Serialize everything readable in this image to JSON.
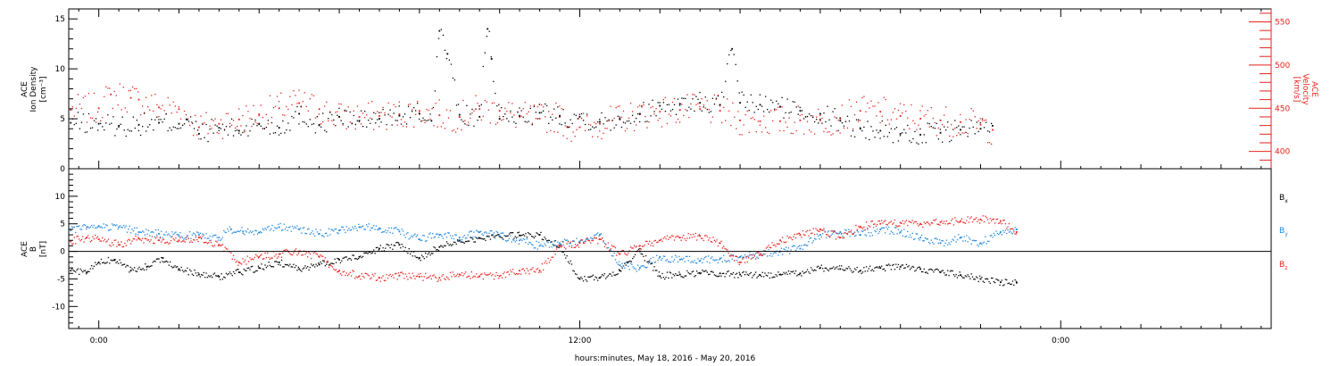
{
  "colors": {
    "black": "#000000",
    "red": "#e8221c",
    "blue": "#1e86e0",
    "axis_right": "#e8221c"
  },
  "xlabel": "hours:minutes, May 18, 2016 - May 20, 2016",
  "x_ticks": [
    {
      "hour": 0,
      "label": "0:00"
    },
    {
      "hour": 12,
      "label": "12:00"
    },
    {
      "hour": 24,
      "label": "0:00"
    }
  ],
  "panels": [
    {
      "id": "density-velocity",
      "left_label": [
        "ACE",
        "Ion Density",
        "[cm⁻³]"
      ],
      "right_label": [
        "ACE",
        "Velocity",
        "[km/s]"
      ],
      "left_ticks": [
        "0",
        "5",
        "10",
        "15"
      ],
      "right_ticks": [
        "400",
        "450",
        "500",
        "550"
      ]
    },
    {
      "id": "magnetic-field",
      "left_label": [
        "ACE",
        "B",
        "[nT]"
      ],
      "left_ticks": [
        "-10",
        "-5",
        "0",
        "5",
        "10"
      ],
      "legend": [
        {
          "base": "B",
          "sub": "x",
          "color": "#000000"
        },
        {
          "base": "B",
          "sub": "y",
          "color": "#1e86e0"
        },
        {
          "base": "B",
          "sub": "z",
          "color": "#e8221c"
        }
      ]
    }
  ],
  "chart_data": [
    {
      "type": "scatter",
      "title": "",
      "xlabel": "hours:minutes, May 18, 2016 - May 20, 2016",
      "xlim_hours": [
        -0.75,
        29.25
      ],
      "ylabel": "ACE Ion Density [cm⁻³]",
      "ylim": [
        0,
        16
      ],
      "y2label": "ACE Velocity [km/s]",
      "y2lim": [
        380,
        565
      ],
      "series": [
        {
          "name": "Ion Density",
          "axis": "left",
          "color": "#000000",
          "points": [
            [
              -0.7,
              4.6
            ],
            [
              0,
              4.5
            ],
            [
              0.5,
              4.3
            ],
            [
              1,
              4.4
            ],
            [
              1.5,
              4.6
            ],
            [
              2,
              4.5
            ],
            [
              2.2,
              4.9
            ],
            [
              2.5,
              3.5
            ],
            [
              3,
              4.1
            ],
            [
              3.5,
              3.8
            ],
            [
              4,
              4.5
            ],
            [
              4.5,
              4.1
            ],
            [
              5,
              5.5
            ],
            [
              5.5,
              4.4
            ],
            [
              6,
              5.2
            ],
            [
              6.5,
              4.8
            ],
            [
              7,
              5.0
            ],
            [
              7.5,
              5.3
            ],
            [
              8,
              5.5
            ],
            [
              8.3,
              4.8
            ],
            [
              8.5,
              13.8
            ],
            [
              8.7,
              11.5
            ],
            [
              9,
              5.4
            ],
            [
              9.5,
              5.2
            ],
            [
              9.7,
              14.0
            ],
            [
              9.8,
              11.0
            ],
            [
              10,
              5.0
            ],
            [
              10.5,
              5.3
            ],
            [
              11,
              5.6
            ],
            [
              11.5,
              5.3
            ],
            [
              12,
              5.2
            ],
            [
              12.5,
              4.7
            ],
            [
              13,
              5.0
            ],
            [
              13.5,
              5.5
            ],
            [
              14,
              6.3
            ],
            [
              14.5,
              6.5
            ],
            [
              15,
              6.6
            ],
            [
              15.5,
              6.4
            ],
            [
              15.8,
              12.0
            ],
            [
              16,
              6.6
            ],
            [
              16.5,
              6.4
            ],
            [
              17,
              6.2
            ],
            [
              17.5,
              5.8
            ],
            [
              18,
              5.5
            ],
            [
              18.5,
              4.8
            ],
            [
              19,
              4.0
            ],
            [
              19.5,
              3.8
            ],
            [
              20,
              3.5
            ],
            [
              20.5,
              3.4
            ],
            [
              21,
              3.6
            ],
            [
              21.5,
              3.9
            ],
            [
              22,
              4.0
            ],
            [
              22.3,
              4.3
            ]
          ]
        },
        {
          "name": "Velocity",
          "axis": "right",
          "color": "#e8221c",
          "points": [
            [
              -0.7,
              448
            ],
            [
              0,
              450
            ],
            [
              0.3,
              466
            ],
            [
              0.8,
              462
            ],
            [
              1,
              460
            ],
            [
              1.5,
              451
            ],
            [
              2,
              449
            ],
            [
              2.5,
              428
            ],
            [
              3,
              432
            ],
            [
              3.5,
              437
            ],
            [
              4,
              443
            ],
            [
              4.5,
              450
            ],
            [
              5,
              456
            ],
            [
              5.5,
              449
            ],
            [
              6,
              440
            ],
            [
              6.5,
              440
            ],
            [
              7,
              441
            ],
            [
              7.5,
              443
            ],
            [
              8,
              447
            ],
            [
              8.5,
              442
            ],
            [
              9,
              440
            ],
            [
              9.5,
              449
            ],
            [
              10,
              447
            ],
            [
              10.5,
              440
            ],
            [
              11,
              438
            ],
            [
              11.5,
              440
            ],
            [
              11.7,
              428
            ],
            [
              12,
              428
            ],
            [
              12.5,
              432
            ],
            [
              13,
              437
            ],
            [
              13.5,
              443
            ],
            [
              14,
              446
            ],
            [
              14.5,
              448
            ],
            [
              15,
              449
            ],
            [
              15.5,
              447
            ],
            [
              16,
              436
            ],
            [
              16.5,
              435
            ],
            [
              17,
              435
            ],
            [
              17.5,
              436
            ],
            [
              18,
              436
            ],
            [
              18.5,
              438
            ],
            [
              19,
              447
            ],
            [
              19.5,
              446
            ],
            [
              20,
              441
            ],
            [
              20.5,
              438
            ],
            [
              21,
              436
            ],
            [
              21.5,
              434
            ],
            [
              22,
              431
            ],
            [
              22.3,
              425
            ]
          ]
        }
      ]
    },
    {
      "type": "scatter",
      "title": "",
      "xlabel": "hours:minutes, May 18, 2016 - May 20, 2016",
      "xlim_hours": [
        -0.75,
        29.25
      ],
      "ylabel": "ACE B [nT]",
      "ylim": [
        -14,
        15
      ],
      "zero_line": true,
      "series": [
        {
          "name": "Bx",
          "color": "#000000",
          "points": [
            [
              -0.7,
              -3.5
            ],
            [
              -0.3,
              -3.8
            ],
            [
              0,
              -2.0
            ],
            [
              0.4,
              -1.5
            ],
            [
              0.8,
              -3.5
            ],
            [
              1.2,
              -2.8
            ],
            [
              1.6,
              -1.2
            ],
            [
              2,
              -3.2
            ],
            [
              2.5,
              -4.2
            ],
            [
              3,
              -4.6
            ],
            [
              3.5,
              -3.8
            ],
            [
              4,
              -3.0
            ],
            [
              4.5,
              -2.0
            ],
            [
              5,
              -3.2
            ],
            [
              5.5,
              -2.4
            ],
            [
              6,
              -1.5
            ],
            [
              6.5,
              -1.0
            ],
            [
              7,
              0.5
            ],
            [
              7.5,
              1.2
            ],
            [
              8,
              -1.2
            ],
            [
              8.5,
              0.8
            ],
            [
              9,
              2.0
            ],
            [
              9.5,
              2.4
            ],
            [
              10,
              2.7
            ],
            [
              10.5,
              2.9
            ],
            [
              11,
              3.0
            ],
            [
              11.5,
              1.0
            ],
            [
              12,
              -5.0
            ],
            [
              12.5,
              -4.8
            ],
            [
              13,
              -3.5
            ],
            [
              13.2,
              -2.0
            ],
            [
              13.5,
              0.0
            ],
            [
              14,
              -4.5
            ],
            [
              14.5,
              -4.2
            ],
            [
              15,
              -4.0
            ],
            [
              15.5,
              -4.0
            ],
            [
              16,
              -4.2
            ],
            [
              16.5,
              -4.3
            ],
            [
              17,
              -4.2
            ],
            [
              17.5,
              -4.0
            ],
            [
              18,
              -3.0
            ],
            [
              18.5,
              -3.2
            ],
            [
              19,
              -3.5
            ],
            [
              19.5,
              -3.0
            ],
            [
              20,
              -2.8
            ],
            [
              20.5,
              -3.2
            ],
            [
              21,
              -3.8
            ],
            [
              21.5,
              -4.3
            ],
            [
              22,
              -5.0
            ],
            [
              22.5,
              -5.6
            ],
            [
              22.9,
              -5.7
            ]
          ]
        },
        {
          "name": "By",
          "color": "#1e86e0",
          "points": [
            [
              -0.7,
              3.8
            ],
            [
              -0.3,
              4.4
            ],
            [
              0,
              4.6
            ],
            [
              0.5,
              4.4
            ],
            [
              1,
              3.5
            ],
            [
              1.5,
              3.2
            ],
            [
              2,
              2.8
            ],
            [
              2.5,
              3.0
            ],
            [
              3,
              2.5
            ],
            [
              3.3,
              4.0
            ],
            [
              3.6,
              3.6
            ],
            [
              4,
              3.4
            ],
            [
              4.5,
              4.4
            ],
            [
              5,
              4.0
            ],
            [
              5.5,
              3.2
            ],
            [
              6,
              3.8
            ],
            [
              6.5,
              4.4
            ],
            [
              7,
              4.2
            ],
            [
              7.5,
              3.6
            ],
            [
              8,
              2.2
            ],
            [
              8.5,
              3.0
            ],
            [
              9,
              2.5
            ],
            [
              9.5,
              3.5
            ],
            [
              10,
              2.8
            ],
            [
              10.5,
              2.0
            ],
            [
              11,
              1.0
            ],
            [
              11.5,
              1.5
            ],
            [
              12,
              1.8
            ],
            [
              12.5,
              3.0
            ],
            [
              13,
              -2.5
            ],
            [
              13.5,
              -3.0
            ],
            [
              14,
              -1.0
            ],
            [
              14.5,
              -1.5
            ],
            [
              15,
              -1.7
            ],
            [
              15.5,
              -1.3
            ],
            [
              16,
              -1.0
            ],
            [
              16.5,
              -0.5
            ],
            [
              17,
              0.0
            ],
            [
              17.5,
              0.5
            ],
            [
              18,
              3.0
            ],
            [
              18.5,
              3.5
            ],
            [
              19,
              3.0
            ],
            [
              19.5,
              4.0
            ],
            [
              20,
              3.5
            ],
            [
              20.5,
              2.5
            ],
            [
              21,
              1.5
            ],
            [
              21.5,
              2.5
            ],
            [
              22,
              1.5
            ],
            [
              22.5,
              3.5
            ],
            [
              22.9,
              4.0
            ]
          ]
        },
        {
          "name": "Bz",
          "color": "#e8221c",
          "points": [
            [
              -0.7,
              1.8
            ],
            [
              -0.3,
              2.5
            ],
            [
              0,
              2.2
            ],
            [
              0.5,
              1.2
            ],
            [
              1,
              2.3
            ],
            [
              1.5,
              2.0
            ],
            [
              2,
              2.0
            ],
            [
              2.5,
              2.5
            ],
            [
              3,
              1.2
            ],
            [
              3.5,
              -2.0
            ],
            [
              4,
              -1.0
            ],
            [
              4.5,
              -0.5
            ],
            [
              5,
              0.0
            ],
            [
              5.5,
              -1.0
            ],
            [
              6,
              -3.5
            ],
            [
              6.5,
              -4.5
            ],
            [
              7,
              -4.8
            ],
            [
              7.5,
              -4.4
            ],
            [
              8,
              -4.6
            ],
            [
              8.5,
              -4.8
            ],
            [
              9,
              -4.2
            ],
            [
              9.5,
              -4.5
            ],
            [
              10,
              -4.5
            ],
            [
              10.5,
              -3.5
            ],
            [
              11,
              -3.5
            ],
            [
              11.5,
              1.0
            ],
            [
              12,
              1.5
            ],
            [
              12.5,
              2.2
            ],
            [
              13,
              -0.5
            ],
            [
              13.5,
              1.0
            ],
            [
              14,
              2.0
            ],
            [
              14.5,
              2.5
            ],
            [
              15,
              2.8
            ],
            [
              15.5,
              1.5
            ],
            [
              16,
              -2.0
            ],
            [
              16.5,
              -0.5
            ],
            [
              17,
              2.0
            ],
            [
              17.5,
              3.0
            ],
            [
              18,
              4.0
            ],
            [
              18.5,
              2.5
            ],
            [
              19,
              4.5
            ],
            [
              19.5,
              5.0
            ],
            [
              20,
              5.2
            ],
            [
              20.5,
              5.0
            ],
            [
              21,
              5.3
            ],
            [
              21.5,
              5.5
            ],
            [
              22,
              5.8
            ],
            [
              22.5,
              5.5
            ],
            [
              22.9,
              3.5
            ]
          ]
        }
      ]
    }
  ]
}
